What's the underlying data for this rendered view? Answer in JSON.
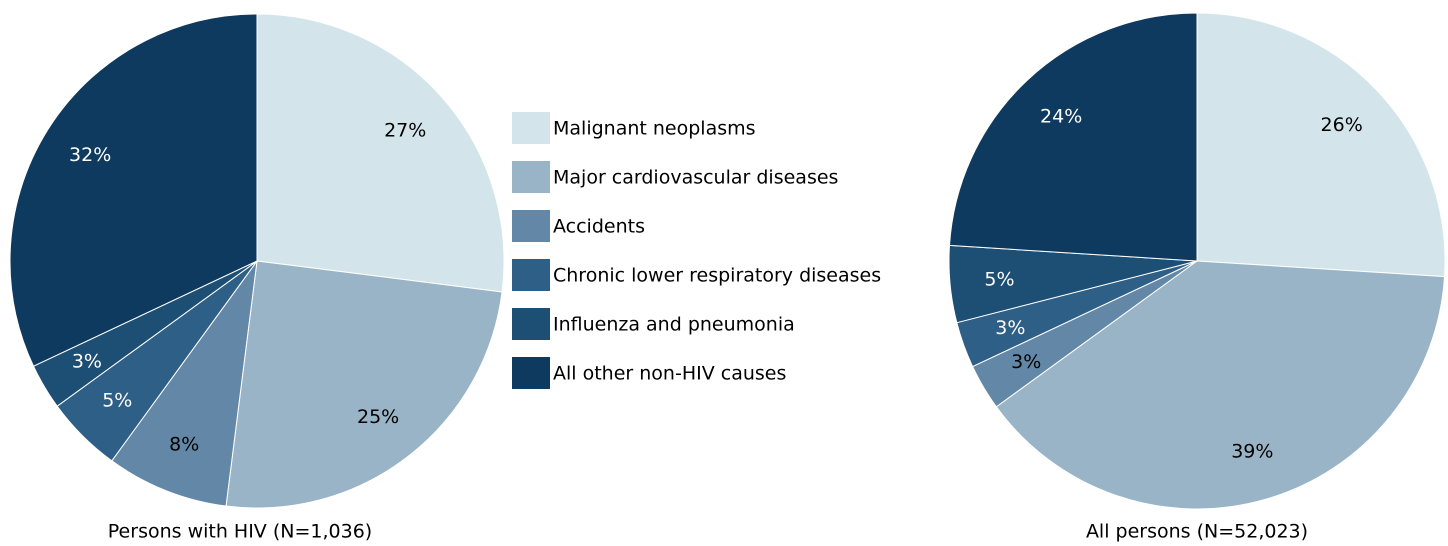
{
  "chart_data": [
    {
      "type": "pie",
      "title": "Persons with HIV (N=1,036)",
      "categories": [
        "Malignant neoplasms",
        "Major cardiovascular diseases",
        "Accidents",
        "Chronic lower respiratory diseases",
        "Influenza and pneumonia",
        "All other non-HIV causes"
      ],
      "colors": [
        "#d3e5ea",
        "#98b4c6",
        "#6387a6",
        "#2e5f86",
        "#1d4e74",
        "#0d3a5e"
      ],
      "values": [
        27,
        25,
        8,
        5,
        3,
        32
      ]
    },
    {
      "type": "pie",
      "title": "All persons (N=52,023)",
      "colors": [
        "#d3e5ea",
        "#98b4c6",
        "#6387a6",
        "#2e5f86",
        "#1d4e74",
        "#0d3a5e"
      ],
      "values": [
        26,
        39,
        3,
        3,
        5,
        24
      ]
    }
  ]
}
